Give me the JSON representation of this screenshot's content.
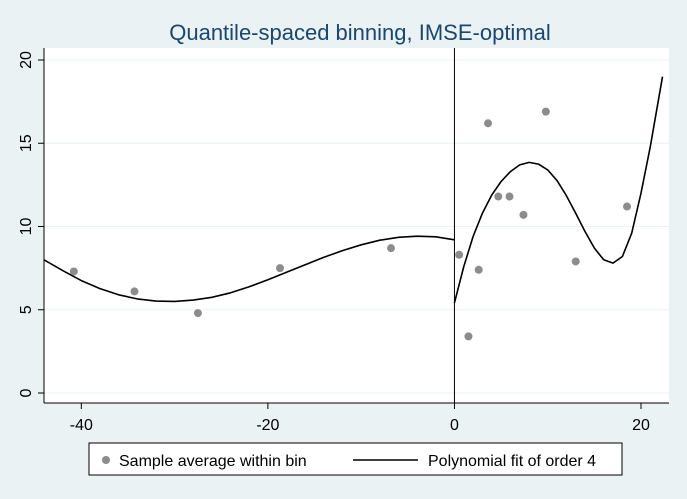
{
  "chart_data": {
    "type": "scatter",
    "title": "Quantile-spaced binning, IMSE-optimal",
    "xlabel": "",
    "ylabel": "",
    "xlim": [
      -44,
      23
    ],
    "ylim": [
      0,
      20
    ],
    "x_ticks": [
      -40,
      -20,
      0,
      20
    ],
    "y_ticks": [
      0,
      5,
      10,
      15,
      20
    ],
    "x_tick_labels": [
      "-40",
      "-20",
      "0",
      "20"
    ],
    "y_tick_labels": [
      "0",
      "5",
      "10",
      "15",
      "20"
    ],
    "cutoff": 0,
    "grid": "horizontal",
    "legend_position": "bottom",
    "colors": {
      "background": "#eaf2f3",
      "plot_background": "#ffffff",
      "grid": "#eaf2f3",
      "points": "#8c8c8c",
      "fit_line": "#000000",
      "title": "#1a476f"
    },
    "series": [
      {
        "name": "Sample average within bin",
        "kind": "points",
        "x": [
          -40.8,
          -34.3,
          -27.5,
          -18.7,
          -6.8,
          0.5,
          1.5,
          2.6,
          3.6,
          4.7,
          5.9,
          7.4,
          9.8,
          13.0,
          18.5
        ],
        "y": [
          7.3,
          6.1,
          4.8,
          7.5,
          8.7,
          8.3,
          3.4,
          7.4,
          16.2,
          11.8,
          11.8,
          10.7,
          16.9,
          7.9,
          11.2
        ]
      },
      {
        "name": "Polynomial fit of order 4",
        "kind": "line",
        "segments": [
          {
            "x": [
              -44,
              -42,
              -40,
              -38,
              -36,
              -34,
              -32,
              -30,
              -28,
              -26,
              -24,
              -22,
              -20,
              -18,
              -16,
              -14,
              -12,
              -10,
              -8,
              -6,
              -4,
              -2,
              0
            ],
            "y": [
              8.0,
              7.35,
              6.75,
              6.27,
              5.9,
              5.65,
              5.52,
              5.5,
              5.58,
              5.75,
              6.02,
              6.38,
              6.8,
              7.25,
              7.7,
              8.15,
              8.55,
              8.9,
              9.18,
              9.35,
              9.42,
              9.38,
              9.2
            ]
          },
          {
            "x": [
              0,
              1,
              2,
              3,
              4,
              5,
              6,
              7,
              8,
              9,
              10,
              11,
              12,
              13,
              14,
              15,
              16,
              17,
              18,
              19,
              20,
              21,
              22.3
            ],
            "y": [
              5.4,
              7.6,
              9.4,
              10.8,
              11.9,
              12.7,
              13.3,
              13.7,
              13.85,
              13.75,
              13.4,
              12.75,
              11.85,
              10.8,
              9.7,
              8.7,
              8.0,
              7.8,
              8.2,
              9.6,
              12.0,
              14.8,
              19.0
            ]
          }
        ]
      }
    ]
  }
}
